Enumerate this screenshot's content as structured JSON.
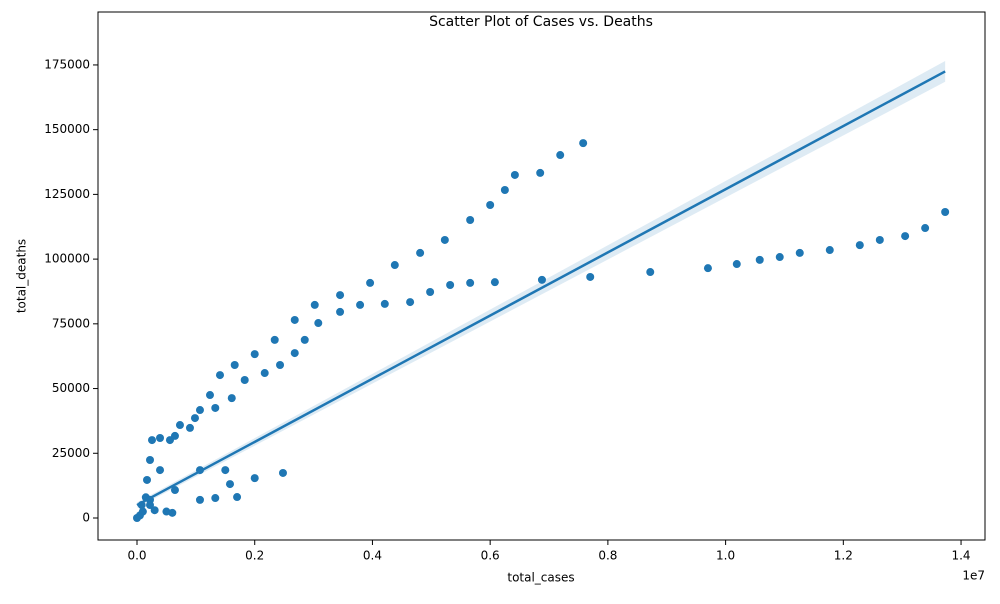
{
  "chart_data": {
    "type": "scatter",
    "title": "Scatter Plot of Cases vs. Deaths",
    "x_label": "total_cases",
    "y_label": "total_deaths",
    "x_offset_label": "1e7",
    "xlim": [
      -662600,
      14407000
    ],
    "ylim": [
      -8500,
      195450
    ],
    "xticks": [
      {
        "value": 0,
        "label": "0.0"
      },
      {
        "value": 2000000,
        "label": "0.2"
      },
      {
        "value": 4000000,
        "label": "0.4"
      },
      {
        "value": 6000000,
        "label": "0.6"
      },
      {
        "value": 8000000,
        "label": "0.8"
      },
      {
        "value": 10000000,
        "label": "1.0"
      },
      {
        "value": 12000000,
        "label": "1.2"
      },
      {
        "value": 14000000,
        "label": "1.4"
      }
    ],
    "yticks": [
      0,
      25000,
      50000,
      75000,
      100000,
      125000,
      150000,
      175000
    ],
    "series": [
      {
        "color": "#1f77b4",
        "x": [
          0,
          50000,
          100000,
          300000,
          500000,
          600000,
          150000,
          80000,
          170000,
          221000,
          255000,
          391000,
          645000,
          900000,
          1070000,
          1240000,
          1410000,
          1660000,
          2000000,
          2340000,
          2680000,
          3020000,
          3450000,
          3960000,
          4380000,
          4810000,
          5230000,
          5660000,
          6000000,
          6250000,
          6420000,
          6850000,
          7190000,
          7580000,
          221000,
          391000,
          560000,
          730000,
          985000,
          1330000,
          1610000,
          1830000,
          2170000,
          2430000,
          2680000,
          2850000,
          3080000,
          3450000,
          3790000,
          4210000,
          4640000,
          4980000,
          5320000,
          5660000,
          6080000,
          6880000,
          7700000,
          8720000,
          9700000,
          10190000,
          10580000,
          10920000,
          11260000,
          11770000,
          12280000,
          12620000,
          13050000,
          13390000,
          13730000,
          221000,
          645000,
          1070000,
          1500000,
          1580000,
          2000000,
          2480000,
          1070000,
          1330000,
          1700000
        ],
        "values": [
          0,
          1000,
          2500,
          3000,
          2500,
          2000,
          8000,
          5000,
          14700,
          22400,
          30100,
          30900,
          31700,
          34800,
          41700,
          47500,
          55200,
          59100,
          63300,
          68800,
          76500,
          82300,
          86100,
          90800,
          97700,
          102400,
          107400,
          115100,
          120900,
          126700,
          132500,
          133300,
          140200,
          144800,
          7000,
          18500,
          30100,
          35900,
          38600,
          42500,
          46300,
          53300,
          56000,
          59100,
          63700,
          68800,
          75300,
          79600,
          82300,
          82700,
          83400,
          87300,
          90000,
          90800,
          91100,
          92000,
          93100,
          95000,
          96500,
          98100,
          99700,
          100800,
          102400,
          103500,
          105400,
          107400,
          108900,
          112000,
          118200,
          5000,
          10800,
          18500,
          18500,
          13100,
          15400,
          17400,
          7000,
          7700,
          8100
        ]
      }
    ],
    "regression_line": {
      "color": "#1f77b4",
      "x": [
        0,
        13730000
      ],
      "y": [
        5000,
        172500
      ],
      "ci_lower": [
        4000,
        168500
      ],
      "ci_upper": [
        6000,
        176500
      ]
    }
  }
}
